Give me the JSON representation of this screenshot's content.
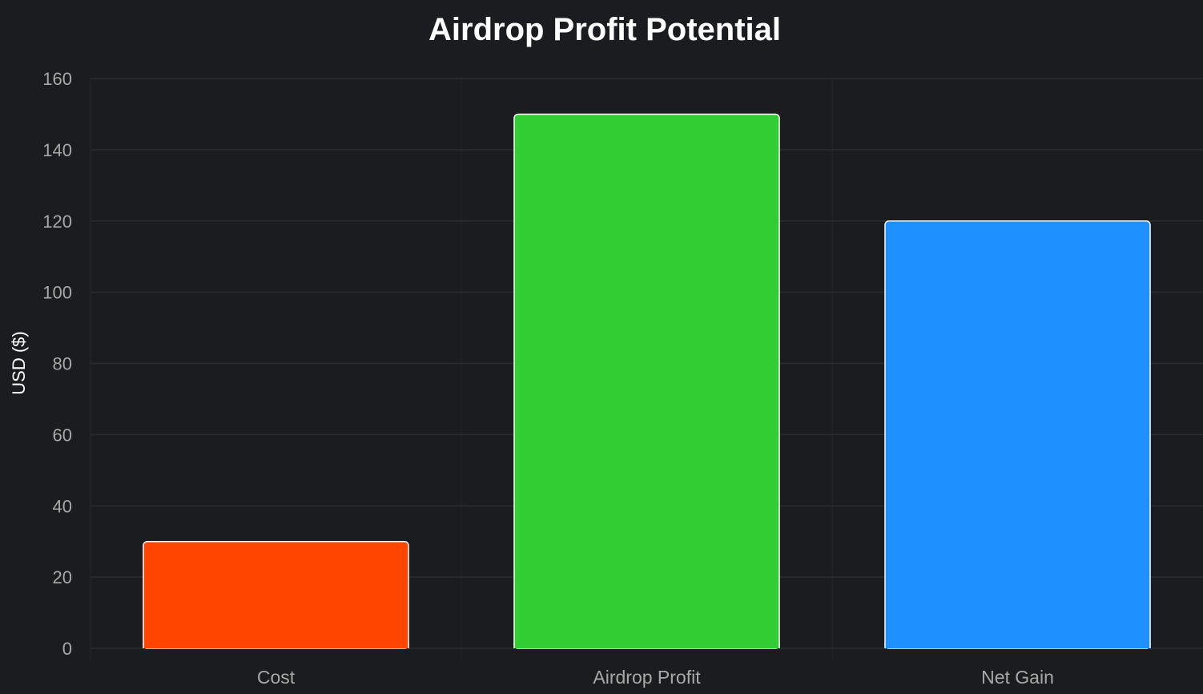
{
  "chart_data": {
    "type": "bar",
    "title": "Airdrop Profit Potential",
    "xlabel": "",
    "ylabel": "USD ($)",
    "categories": [
      "Cost",
      "Airdrop Profit",
      "Net Gain"
    ],
    "values": [
      30,
      150,
      120
    ],
    "colors": [
      "#ff4500",
      "#32cd32",
      "#1e90ff"
    ],
    "ylim": [
      0,
      160
    ],
    "yticks": [
      "0",
      "20",
      "40",
      "60",
      "80",
      "100",
      "120",
      "140",
      "160"
    ],
    "grid": true,
    "background": "#1b1c20"
  }
}
